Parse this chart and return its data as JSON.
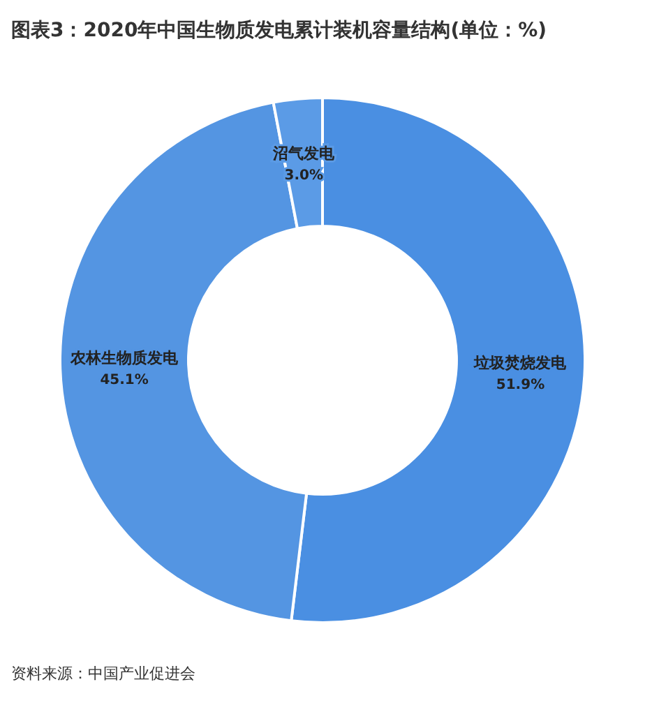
{
  "chart_data": {
    "type": "donut",
    "title": "图表3：2020年中国生物质发电累计装机容量结构(单位：%)",
    "categories": [
      "垃圾焚烧发电",
      "农林生物质发电",
      "沼气发电"
    ],
    "values": [
      51.9,
      45.1,
      3.0
    ],
    "colors": [
      "#4a8fe2",
      "#5495e2",
      "#5b9be6"
    ],
    "value_labels": [
      "51.9%",
      "45.1%",
      "3.0%"
    ],
    "annotations": [
      "资料来源：中国产业促进会"
    ]
  }
}
